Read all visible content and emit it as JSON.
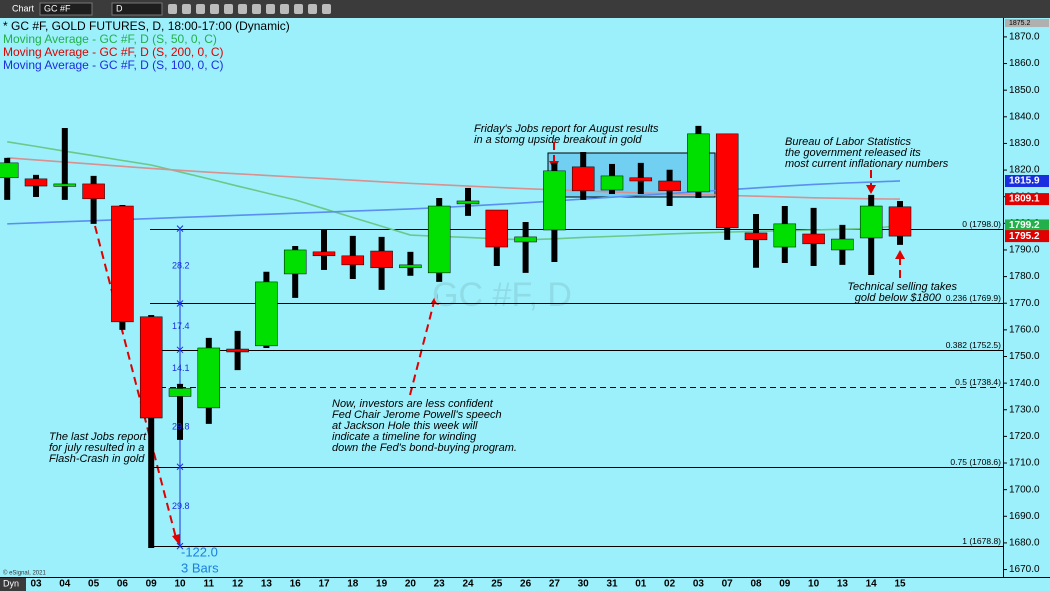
{
  "toolbar": {
    "app": "Chart",
    "symbol": "GC #F",
    "interval": "D"
  },
  "footer": {
    "mode": "Dyn",
    "copyright": "© eSignal, 2021"
  },
  "chart_data": {
    "type": "candlestick",
    "title": "* GC #F, GOLD FUTURES, D, 18:00-17:00 (Dynamic)",
    "watermark": "GC #F, D",
    "categories": [
      null,
      "03",
      "04",
      "05",
      "06",
      "09",
      "10",
      "11",
      "12",
      "13",
      "16",
      "17",
      "18",
      "19",
      "20",
      "23",
      "24",
      "25",
      "26",
      "27",
      "30",
      "31",
      "01",
      "02",
      "03",
      "07",
      "08",
      "09",
      "10",
      "13",
      "14",
      "15"
    ],
    "open": [
      1817.1,
      1816.7,
      1814.4,
      1814.8,
      1806.5,
      1764.9,
      1735.0,
      1730.7,
      1752.8,
      1754.0,
      1781.0,
      1789.3,
      1787.8,
      1789.6,
      1783.3,
      1781.4,
      1807.3,
      1805.0,
      1793.0,
      1797.5,
      1821.2,
      1812.5,
      1817.1,
      1815.9,
      1811.8,
      1833.6,
      1796.4,
      1791.1,
      1796.0,
      1790.0,
      1794.5,
      1806.2
    ],
    "high": [
      1824.6,
      1818.2,
      1835.8,
      1817.8,
      1806.9,
      1765.6,
      1739.7,
      1757.0,
      1759.6,
      1781.8,
      1791.5,
      1797.5,
      1795.3,
      1794.9,
      1789.3,
      1809.5,
      1813.3,
      1805.0,
      1800.5,
      1822.7,
      1826.8,
      1822.3,
      1822.7,
      1820.1,
      1836.6,
      1833.6,
      1803.5,
      1806.5,
      1805.8,
      1799.4,
      1810.7,
      1808.4
    ],
    "low": [
      1808.8,
      1809.9,
      1808.8,
      1799.8,
      1760.0,
      1678.1,
      1718.7,
      1724.7,
      1744.9,
      1753.2,
      1772.0,
      1782.5,
      1779.1,
      1775.0,
      1780.3,
      1778.0,
      1802.8,
      1784.0,
      1781.4,
      1785.5,
      1808.8,
      1811.0,
      1811.0,
      1806.5,
      1809.5,
      1793.8,
      1783.3,
      1785.1,
      1784.0,
      1784.4,
      1780.6,
      1791.9
    ],
    "close": [
      1822.7,
      1814.0,
      1814.8,
      1809.2,
      1763.0,
      1726.9,
      1738.0,
      1753.2,
      1751.7,
      1778.0,
      1790.0,
      1787.8,
      1784.4,
      1783.3,
      1784.4,
      1806.5,
      1808.4,
      1791.1,
      1794.9,
      1819.7,
      1812.2,
      1817.8,
      1815.9,
      1812.2,
      1833.6,
      1798.3,
      1793.8,
      1799.8,
      1792.3,
      1794.1,
      1806.5,
      1795.2
    ],
    "up_color": "#00e000",
    "down_color": "#ff0000",
    "series": [
      {
        "name": "Moving Average - GC #F, D (S, 50, 0, C)",
        "color": "#22b04a",
        "line_color": "#6cc88a",
        "values": [
          1830.6,
          1828.9,
          1827.1,
          1825.4,
          1823.6,
          1821.9,
          1819.3,
          1816.7,
          1814.0,
          1811.4,
          1808.8,
          1805.5,
          1802.2,
          1798.9,
          1795.6,
          1795.1,
          1794.7,
          1794.2,
          1793.8,
          1794.2,
          1794.7,
          1795.1,
          1795.5,
          1796.0,
          1796.4,
          1796.7,
          1797.0,
          1797.2,
          1797.5,
          1797.8,
          1798.0,
          1799.2
        ]
      },
      {
        "name": "Moving Average - GC #F, D (S, 200, 0, C)",
        "color": "#e00000",
        "line_color": "#d89090",
        "values": [
          1824.6,
          1823.8,
          1823.0,
          1822.2,
          1821.4,
          1820.6,
          1819.9,
          1819.2,
          1818.6,
          1818.0,
          1817.4,
          1816.8,
          1816.2,
          1815.6,
          1815.0,
          1814.5,
          1814.0,
          1813.5,
          1813.0,
          1812.6,
          1812.2,
          1811.8,
          1811.4,
          1811.1,
          1810.8,
          1810.5,
          1810.2,
          1809.9,
          1809.6,
          1809.4,
          1809.2,
          1809.1
        ]
      },
      {
        "name": "Moving Average - GC #F, D (S, 100, 0, C)",
        "color": "#1a2ee0",
        "line_color": "#5a8ef0",
        "values": [
          1799.8,
          1800.2,
          1800.6,
          1801.0,
          1801.4,
          1801.8,
          1802.2,
          1802.6,
          1803.0,
          1803.4,
          1803.8,
          1804.2,
          1804.6,
          1805.0,
          1805.4,
          1805.9,
          1806.5,
          1807.1,
          1807.7,
          1808.4,
          1809.1,
          1809.8,
          1810.5,
          1811.2,
          1811.9,
          1812.6,
          1813.3,
          1814.0,
          1814.6,
          1815.1,
          1815.5,
          1815.9
        ]
      }
    ],
    "ylim": [
      1667.2,
      1877.1
    ],
    "yticks": [
      {
        "value": 1670,
        "label": "1670.0"
      },
      {
        "value": 1680,
        "label": "1680.0"
      },
      {
        "value": 1690,
        "label": "1690.0"
      },
      {
        "value": 1700,
        "label": "1700.0"
      },
      {
        "value": 1710,
        "label": "1710.0"
      },
      {
        "value": 1720,
        "label": "1720.0"
      },
      {
        "value": 1730,
        "label": "1730.0"
      },
      {
        "value": 1740,
        "label": "1740.0"
      },
      {
        "value": 1750,
        "label": "1750.0"
      },
      {
        "value": 1760,
        "label": "1760.0"
      },
      {
        "value": 1770,
        "label": "1770.0"
      },
      {
        "value": 1780,
        "label": "1780.0"
      },
      {
        "value": 1790,
        "label": "1790.0"
      },
      {
        "value": 1800,
        "label": "1800.0"
      },
      {
        "value": 1810,
        "label": "1810.0"
      },
      {
        "value": 1820,
        "label": "1820.0"
      },
      {
        "value": 1830,
        "label": "1830.0"
      },
      {
        "value": 1840,
        "label": "1840.0"
      },
      {
        "value": 1850,
        "label": "1850.0"
      },
      {
        "value": 1860,
        "label": "1860.0"
      },
      {
        "value": 1870,
        "label": "1870.0"
      }
    ],
    "price_badges": [
      {
        "value": 1875.2,
        "color": "#b0b0b0"
      },
      {
        "value": 1815.9,
        "color": "#1a2ee0"
      },
      {
        "value": 1809.1,
        "color": "#e00000"
      },
      {
        "value": 1799.2,
        "color": "#22b04a"
      },
      {
        "value": 1795.2,
        "color": "#e00000"
      }
    ],
    "fib_levels": [
      {
        "value": 1798.0,
        "label": "0 (1798.0)"
      },
      {
        "value": 1769.9,
        "label": "0.236 (1769.9)"
      },
      {
        "value": 1752.5,
        "label": "0.382 (1752.5)"
      },
      {
        "value": 1738.4,
        "label": "0.5 (1738.4)",
        "dashed": true
      },
      {
        "value": 1708.6,
        "label": "0.75 (1708.6)"
      },
      {
        "value": 1678.8,
        "label": "1 (1678.8)"
      }
    ],
    "measure": {
      "segments": [
        28.2,
        17.4,
        14.1,
        29.8,
        29.8
      ],
      "total": {
        "value": -122,
        "label": "-122.0"
      },
      "bars": "3 Bars"
    },
    "annotations": [
      {
        "lines": [
          "The last Jobs report",
          "for july resulted in a",
          "Flash-Crash in gold"
        ]
      },
      {
        "lines": [
          "Now, investors are less confident",
          "Fed Chair Jerome Powell's speech",
          "at Jackson Hole this week will",
          "indicate a timeline for winding",
          "down the Fed's bond-buying program."
        ]
      },
      {
        "lines": [
          "Friday's Jobs report for August results",
          "in a stomg upside breakout in gold"
        ]
      },
      {
        "lines": [
          "Bureau of Labor Statistics",
          "the government released its",
          "most current inflationary numbers"
        ]
      },
      {
        "lines": [
          "Technical selling takes",
          "gold below $1800"
        ]
      }
    ]
  }
}
